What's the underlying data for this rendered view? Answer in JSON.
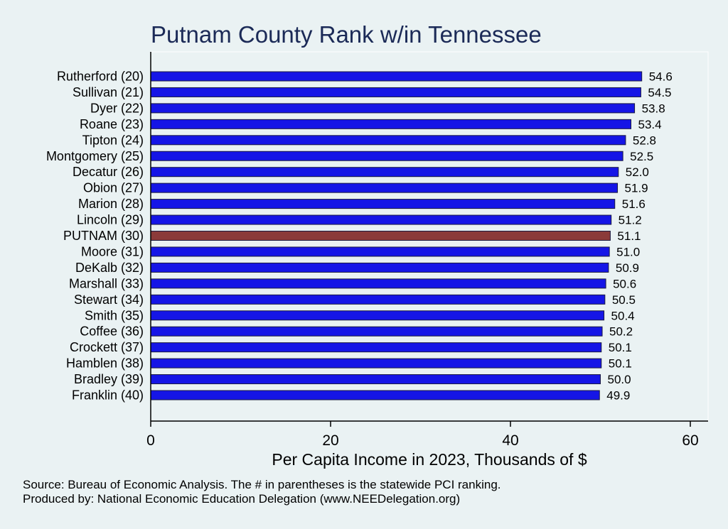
{
  "chart_data": {
    "type": "bar",
    "orientation": "horizontal",
    "title": "Putnam County Rank w/in Tennessee",
    "xlabel": "Per Capita Income in 2023, Thousands of $",
    "xlim": [
      0,
      62
    ],
    "xticks": [
      0,
      20,
      40,
      60
    ],
    "grid": false,
    "categories": [
      "Rutherford (20)",
      "Sullivan (21)",
      "Dyer (22)",
      "Roane (23)",
      "Tipton (24)",
      "Montgomery (25)",
      "Decatur (26)",
      "Obion (27)",
      "Marion (28)",
      "Lincoln (29)",
      "PUTNAM (30)",
      "Moore (31)",
      "DeKalb (32)",
      "Marshall (33)",
      "Stewart (34)",
      "Smith (35)",
      "Coffee (36)",
      "Crockett (37)",
      "Hamblen (38)",
      "Bradley (39)",
      "Franklin (40)"
    ],
    "values": [
      54.6,
      54.5,
      53.8,
      53.4,
      52.8,
      52.5,
      52.0,
      51.9,
      51.6,
      51.2,
      51.1,
      51.0,
      50.9,
      50.6,
      50.5,
      50.4,
      50.2,
      50.1,
      50.1,
      50.0,
      49.9
    ],
    "value_labels": [
      "54.6",
      "54.5",
      "53.8",
      "53.4",
      "52.8",
      "52.5",
      "52.0",
      "51.9",
      "51.6",
      "51.2",
      "51.1",
      "51.0",
      "50.9",
      "50.6",
      "50.5",
      "50.4",
      "50.2",
      "50.1",
      "50.1",
      "50.0",
      "49.9"
    ],
    "highlight_index": 10,
    "bar_color": "#1515e6",
    "highlight_color": "#8b3a3a"
  },
  "notes": {
    "source": "Source: Bureau of Economic Analysis. The # in parentheses is the statewide PCI ranking.",
    "produced": "Produced by: National Economic Education Delegation (www.NEEDelegation.org)"
  }
}
